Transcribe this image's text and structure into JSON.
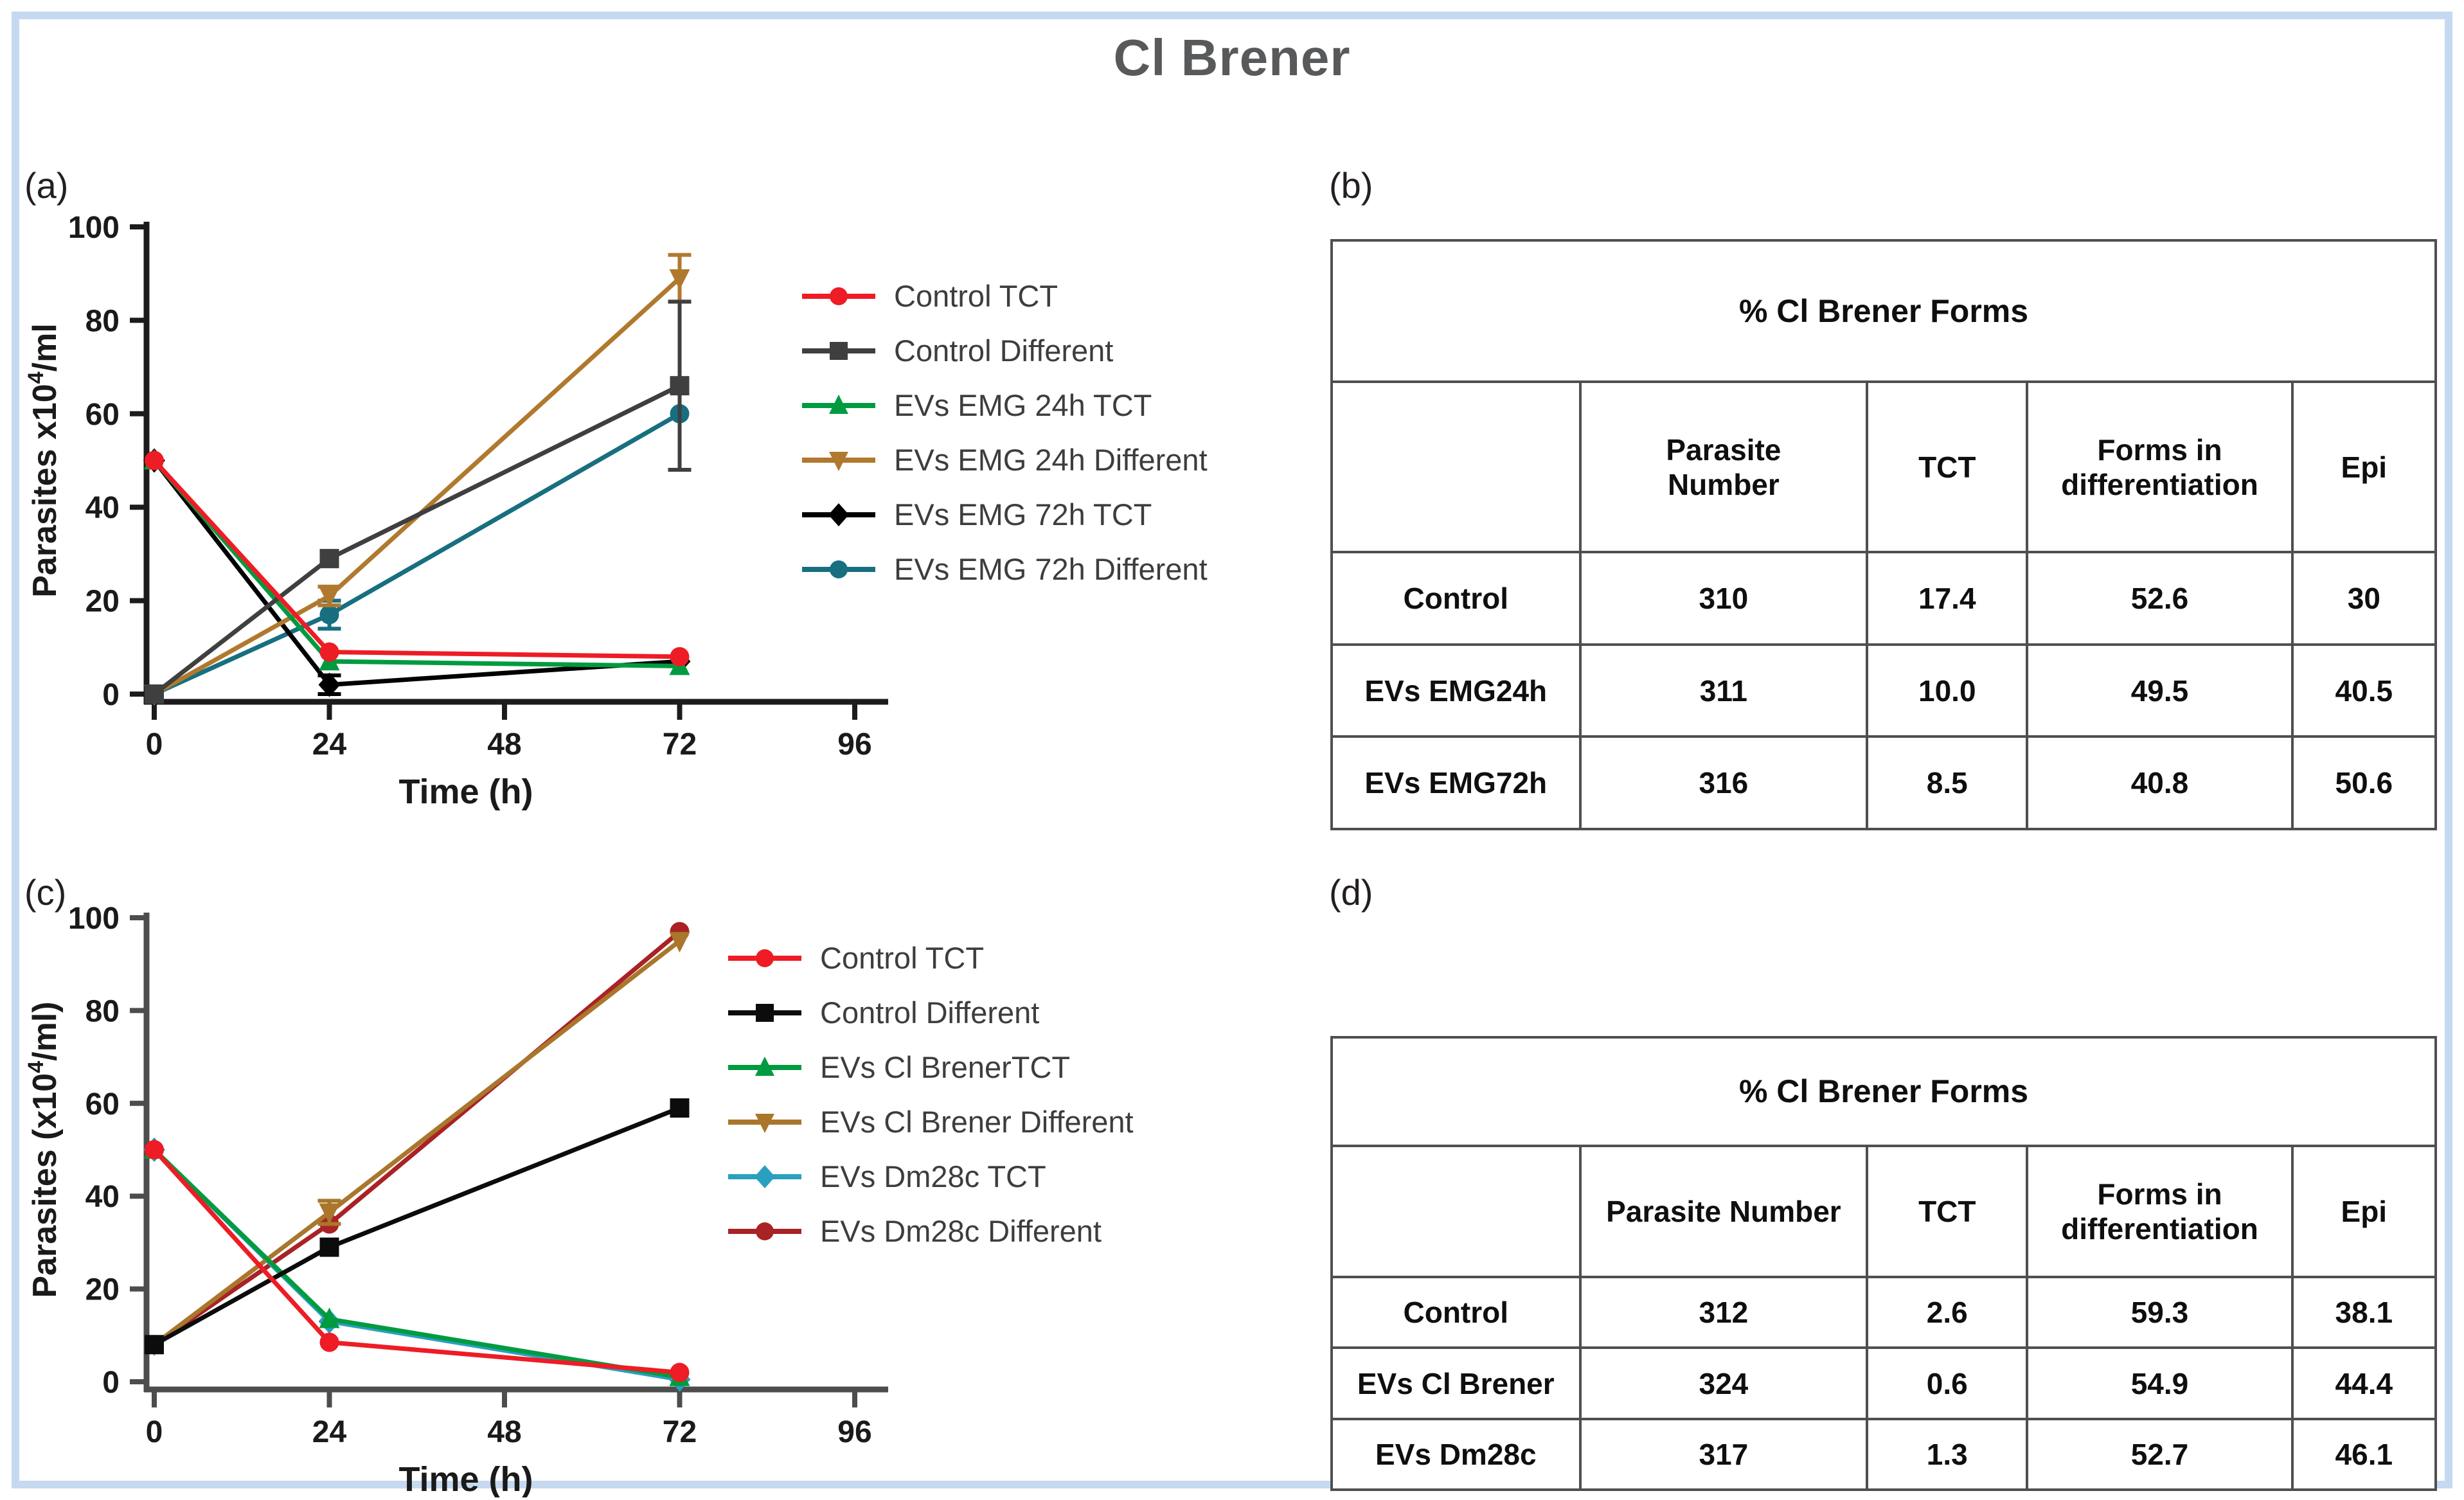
{
  "title": "Cl Brener",
  "panels": {
    "a": {
      "label": "(a)"
    },
    "b": {
      "label": "(b)"
    },
    "c": {
      "label": "(c)"
    },
    "d": {
      "label": "(d)"
    }
  },
  "chart_data": [
    {
      "type": "line",
      "title": "",
      "xlabel": "Time (h)",
      "ylabel_segments": [
        {
          "t": "Parasites x10"
        },
        {
          "t": "4",
          "sup": true
        },
        {
          "t": "/ml"
        }
      ],
      "x": [
        0,
        24,
        72
      ],
      "xticks": [
        0,
        24,
        48,
        72,
        96
      ],
      "yticks": [
        0,
        20,
        40,
        60,
        80,
        100
      ],
      "xlim": [
        0,
        96
      ],
      "ylim": [
        0,
        100
      ],
      "grid": false,
      "legend_position": "right",
      "axis_color": "#1c1c1c",
      "series": [
        {
          "name": "Control TCT",
          "color": "#ee1c25",
          "marker": "circle",
          "values": [
            50,
            9,
            8
          ],
          "errors": [
            0,
            0,
            0
          ]
        },
        {
          "name": "Control Different",
          "color": "#3f3f3f",
          "marker": "square",
          "values": [
            0,
            29,
            66
          ],
          "errors": [
            0,
            0,
            18
          ]
        },
        {
          "name": "EVs EMG 24h TCT",
          "color": "#009b40",
          "marker": "triangle-up",
          "values": [
            50,
            7,
            6
          ],
          "errors": [
            0,
            0,
            0
          ]
        },
        {
          "name": "EVs EMG 24h Different",
          "color": "#b0792e",
          "marker": "triangle-down",
          "values": [
            0,
            21,
            89
          ],
          "errors": [
            0,
            2,
            5
          ]
        },
        {
          "name": "EVs EMG 72h TCT",
          "color": "#000000",
          "marker": "diamond",
          "values": [
            50,
            2,
            7
          ],
          "errors": [
            0,
            2,
            0
          ]
        },
        {
          "name": "EVs EMG 72h Different",
          "color": "#176f80",
          "marker": "circle",
          "values": [
            0,
            17,
            60
          ],
          "errors": [
            0,
            3,
            0
          ]
        }
      ]
    },
    {
      "type": "table",
      "title": "% Cl Brener Forms",
      "columns": [
        "",
        "Parasite\nNumber",
        "TCT",
        "Forms in\ndifferentiation",
        "Epi"
      ],
      "col_widths": [
        22.5,
        26,
        14.5,
        24,
        13
      ],
      "rows": [
        [
          "Control",
          "310",
          "17.4",
          "52.6",
          "30"
        ],
        [
          "EVs EMG24h",
          "311",
          "10.0",
          "49.5",
          "40.5"
        ],
        [
          "EVs EMG72h",
          "316",
          "8.5",
          "40.8",
          "50.6"
        ]
      ]
    },
    {
      "type": "line",
      "title": "",
      "xlabel": "Time (h)",
      "ylabel_segments": [
        {
          "t": "Parasites (x10"
        },
        {
          "t": "4",
          "sup": true
        },
        {
          "t": "/ml)"
        }
      ],
      "x": [
        0,
        24,
        72
      ],
      "xticks": [
        0,
        24,
        48,
        72,
        96
      ],
      "yticks": [
        0,
        20,
        40,
        60,
        80,
        100
      ],
      "xlim": [
        0,
        96
      ],
      "ylim": [
        0,
        100
      ],
      "grid": false,
      "legend_position": "right",
      "axis_color": "#4d4d4d",
      "series": [
        {
          "name": "Control TCT",
          "color": "#ee1c25",
          "marker": "circle",
          "values": [
            50,
            8.5,
            2
          ],
          "errors": [
            0,
            0,
            0
          ]
        },
        {
          "name": "Control Different",
          "color": "#0c0c0c",
          "marker": "square",
          "values": [
            8,
            29,
            59
          ],
          "errors": [
            0,
            0,
            0
          ]
        },
        {
          "name": "EVs Cl BrenerTCT",
          "color": "#009b40",
          "marker": "triangle-up",
          "values": [
            50,
            13.5,
            1
          ],
          "errors": [
            0,
            0,
            0
          ]
        },
        {
          "name": "EVs Cl Brener Different",
          "color": "#a9762c",
          "marker": "triangle-down",
          "values": [
            8,
            36.5,
            95
          ],
          "errors": [
            0,
            2.5,
            0
          ]
        },
        {
          "name": "EVs Dm28c TCT",
          "color": "#2a9fc0",
          "marker": "diamond",
          "values": [
            50,
            13,
            0.5
          ],
          "errors": [
            0,
            0,
            0
          ]
        },
        {
          "name": "EVs Dm28c Different",
          "color": "#a92225",
          "marker": "circle",
          "values": [
            8,
            34,
            97
          ],
          "errors": [
            0,
            0,
            0
          ]
        }
      ]
    },
    {
      "type": "table",
      "title": "% Cl Brener Forms",
      "columns": [
        "",
        "Parasite Number",
        "TCT",
        "Forms in\ndifferentiation",
        "Epi"
      ],
      "col_widths": [
        22.5,
        26,
        14.5,
        24,
        13
      ],
      "rows": [
        [
          "Control",
          "312",
          "2.6",
          "59.3",
          "38.1"
        ],
        [
          "EVs Cl Brener",
          "324",
          "0.6",
          "54.9",
          "44.4"
        ],
        [
          "EVs Dm28c",
          "317",
          "1.3",
          "52.7",
          "46.1"
        ]
      ]
    }
  ]
}
